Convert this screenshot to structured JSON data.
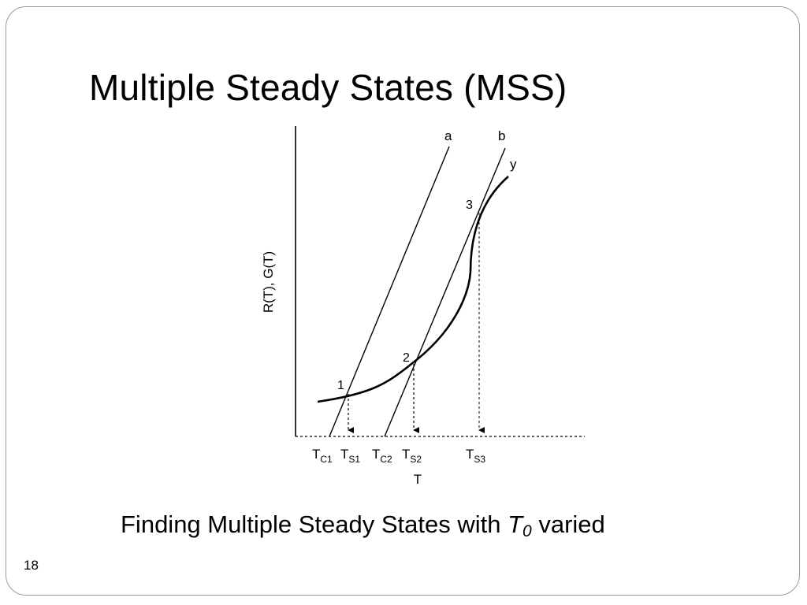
{
  "slide": {
    "title": "Multiple Steady States (MSS)",
    "number": "18"
  },
  "caption": {
    "before": "Finding Multiple Steady States with ",
    "variable": "T",
    "subscript": "0",
    "after": " varied"
  },
  "diagram": {
    "y_axis_label": "R(T), G(T)",
    "x_axis_label": "T",
    "curve_labels": {
      "line_a": "a",
      "line_b": "b",
      "curve_y": "y"
    },
    "point_labels": [
      "1",
      "2",
      "3"
    ],
    "tick_labels": [
      {
        "main": "T",
        "sub": "C1"
      },
      {
        "main": "T",
        "sub": "S1"
      },
      {
        "main": "T",
        "sub": "C2"
      },
      {
        "main": "T",
        "sub": "S2"
      },
      {
        "main": "T",
        "sub": "S3"
      }
    ]
  },
  "colors": {
    "ink": "#000000",
    "frame": "#9a9a9a",
    "background": "#ffffff"
  }
}
